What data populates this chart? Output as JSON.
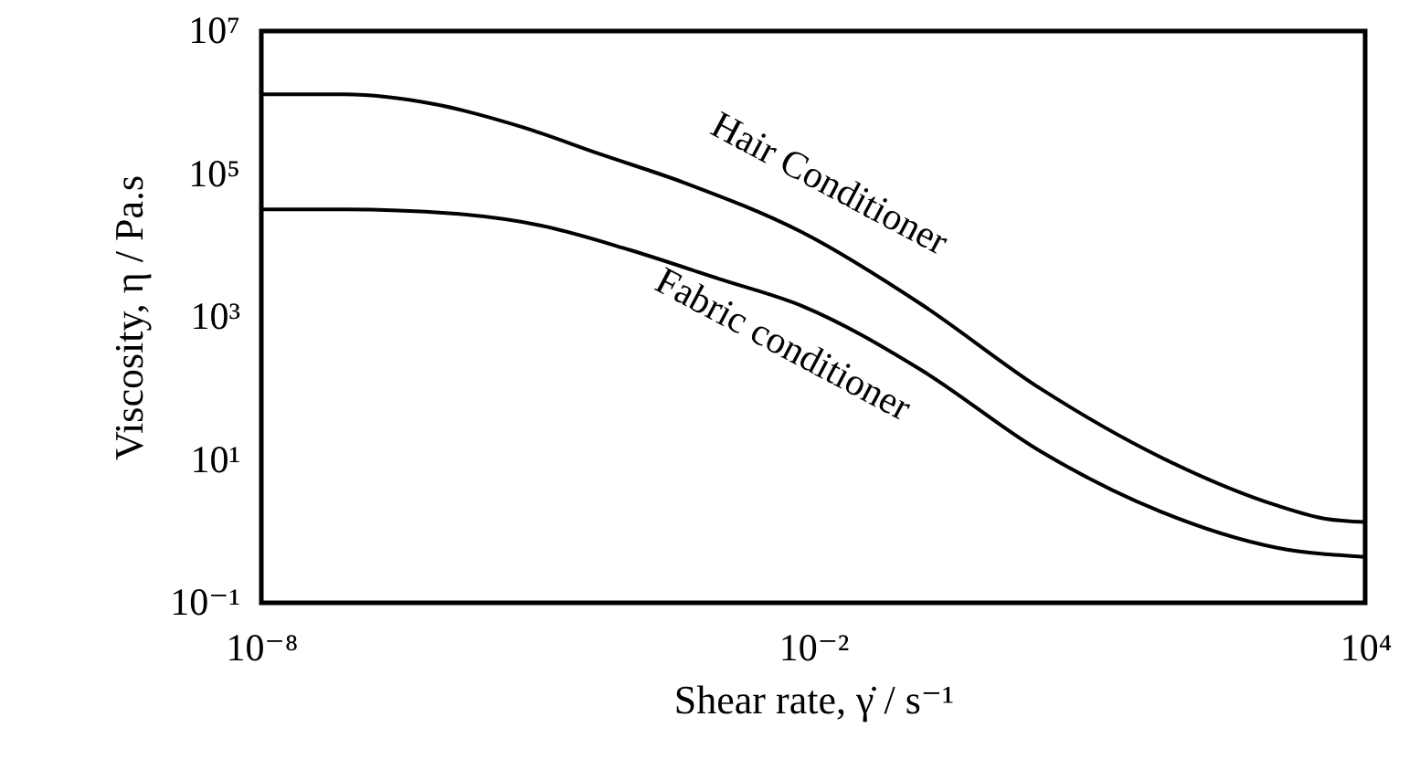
{
  "chart_data": {
    "type": "line",
    "xlabel": "Shear rate,  γ̇ / s⁻¹",
    "ylabel": "Viscosity, η / Pa.s",
    "log": "xy",
    "grid": false,
    "xlim": [
      1e-08,
      10000
    ],
    "xticks": [
      {
        "value": 1e-08,
        "label": "10⁻⁸"
      },
      {
        "value": 0.01,
        "label": "10⁻²"
      },
      {
        "value": 10000,
        "label": "10⁴"
      }
    ],
    "ylim": [
      0.1,
      10000000
    ],
    "yticks": [
      {
        "value": 0.1,
        "label": "10⁻¹"
      },
      {
        "value": 10,
        "label": "10¹"
      },
      {
        "value": 1000,
        "label": "10³"
      },
      {
        "value": 100000,
        "label": "10⁵"
      },
      {
        "value": 10000000,
        "label": "10⁷"
      }
    ],
    "series": [
      {
        "name": "Hair Conditioner",
        "color": "#000000",
        "x": [
          1e-08,
          8e-08,
          7.6e-07,
          7e-06,
          4.8e-05,
          0.00039,
          0.0078,
          0.15,
          3,
          59,
          1100,
          3700,
          10000
        ],
        "values": [
          1300000,
          1300000,
          950000,
          450000,
          190000,
          76000,
          15000,
          1500,
          98,
          11,
          2.3,
          1.5,
          1.35
        ]
      },
      {
        "name": "Fabric conditioner",
        "color": "#000000",
        "x": [
          1e-08,
          8e-08,
          1.2e-06,
          1.1e-05,
          0.0001,
          0.00095,
          0.0078,
          0.15,
          3,
          59,
          1100,
          10000
        ],
        "values": [
          32000,
          32000,
          28000,
          19000,
          8700,
          3400,
          1400,
          180,
          13,
          1.9,
          0.59,
          0.44
        ]
      }
    ]
  }
}
